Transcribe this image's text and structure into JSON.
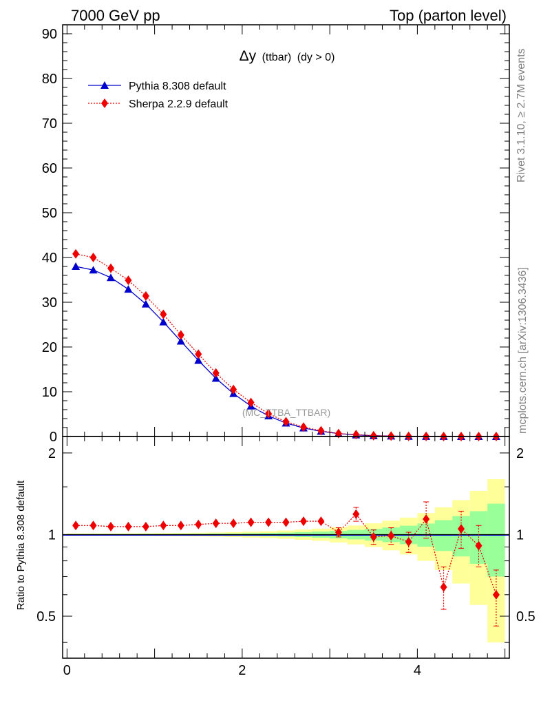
{
  "header": {
    "left": "7000 GeV pp",
    "right": "Top (parton level)"
  },
  "side_labels": {
    "rivet": "Rivet 3.1.10, ≥ 2.7M events",
    "mcplots": "mcplots.cern.ch [arXiv:1306.3436]"
  },
  "plot_title": {
    "symbol": "Δy",
    "sub": "(ttbar)",
    "cut": "(dy > 0)"
  },
  "watermark": "(MC_TTBA_TTBAR)",
  "legend": {
    "pythia": "Pythia 8.308 default",
    "sherpa": "Sherpa 2.2.9 default"
  },
  "colors": {
    "pythia": "#0000cc",
    "sherpa": "#ee0000",
    "band_yellow": "#ffff99",
    "band_green": "#99ff99"
  },
  "chart_data": [
    {
      "type": "line",
      "x": [
        0.1,
        0.3,
        0.5,
        0.7,
        0.9,
        1.1,
        1.3,
        1.5,
        1.7,
        1.9,
        2.1,
        2.3,
        2.5,
        2.7,
        2.9,
        3.1,
        3.3,
        3.5,
        3.7,
        3.9,
        4.1,
        4.3,
        4.5,
        4.7,
        4.9
      ],
      "series": [
        {
          "name": "Pythia 8.308 default",
          "values": [
            38.0,
            37.2,
            35.5,
            32.9,
            29.6,
            25.6,
            21.3,
            17.0,
            13.0,
            9.6,
            6.8,
            4.6,
            3.0,
            1.9,
            1.15,
            0.65,
            0.35,
            0.18,
            0.09,
            0.045,
            0.022,
            0.011,
            0.005,
            0.002,
            0.001
          ]
        },
        {
          "name": "Sherpa 2.2.9 default",
          "values": [
            40.8,
            40.0,
            37.6,
            34.9,
            31.4,
            27.3,
            22.7,
            18.4,
            14.2,
            10.5,
            7.6,
            5.1,
            3.3,
            2.1,
            1.28,
            0.66,
            0.42,
            0.18,
            0.09,
            0.043,
            0.025,
            0.007,
            0.005,
            0.002,
            0.001
          ]
        }
      ],
      "xlim": [
        -0.05,
        5.05
      ],
      "ylim": [
        0,
        92
      ],
      "yticks": [
        0,
        10,
        20,
        30,
        40,
        50,
        60,
        70,
        80,
        90
      ]
    },
    {
      "type": "line",
      "ylabel": "Ratio to Pythia 8.308 default",
      "xlim": [
        -0.05,
        5.05
      ],
      "ylim": [
        0.35,
        2.3
      ],
      "ytick_labels": [
        "0.5",
        "1",
        "2"
      ],
      "yticks": [
        0.5,
        1,
        2
      ],
      "xticks": [
        0,
        2,
        4
      ],
      "bin_edges": [
        0.0,
        0.2,
        0.4,
        0.6,
        0.8,
        1.0,
        1.2,
        1.4,
        1.6,
        1.8,
        2.0,
        2.2,
        2.4,
        2.6,
        2.8,
        3.0,
        3.2,
        3.4,
        3.6,
        3.8,
        4.0,
        4.2,
        4.4,
        4.6,
        4.8,
        5.0
      ],
      "band_green": [
        0.005,
        0.005,
        0.005,
        0.005,
        0.006,
        0.006,
        0.007,
        0.008,
        0.009,
        0.01,
        0.012,
        0.014,
        0.017,
        0.021,
        0.026,
        0.032,
        0.04,
        0.05,
        0.062,
        0.078,
        0.098,
        0.13,
        0.17,
        0.22,
        0.3
      ],
      "band_yellow": [
        0.01,
        0.01,
        0.01,
        0.011,
        0.012,
        0.013,
        0.014,
        0.016,
        0.018,
        0.021,
        0.025,
        0.029,
        0.035,
        0.043,
        0.052,
        0.065,
        0.08,
        0.1,
        0.125,
        0.155,
        0.2,
        0.26,
        0.34,
        0.45,
        0.6
      ],
      "series": [
        {
          "name": "Sherpa 2.2.9 default",
          "values": [
            1.08,
            1.08,
            1.07,
            1.07,
            1.07,
            1.08,
            1.08,
            1.09,
            1.1,
            1.1,
            1.11,
            1.11,
            1.11,
            1.12,
            1.12,
            1.02,
            1.19,
            0.98,
            0.99,
            0.94,
            1.14,
            0.64,
            1.05,
            0.91,
            0.6
          ],
          "err_up": [
            0.005,
            0.005,
            0.005,
            0.005,
            0.006,
            0.006,
            0.007,
            0.008,
            0.009,
            0.01,
            0.012,
            0.014,
            0.017,
            0.02,
            0.03,
            0.04,
            0.07,
            0.06,
            0.07,
            0.08,
            0.18,
            0.12,
            0.17,
            0.17,
            0.14
          ],
          "err_dn": [
            0.005,
            0.005,
            0.005,
            0.005,
            0.006,
            0.006,
            0.007,
            0.008,
            0.009,
            0.01,
            0.012,
            0.014,
            0.017,
            0.02,
            0.03,
            0.04,
            0.07,
            0.06,
            0.07,
            0.08,
            0.17,
            0.11,
            0.16,
            0.15,
            0.14
          ]
        }
      ]
    }
  ]
}
